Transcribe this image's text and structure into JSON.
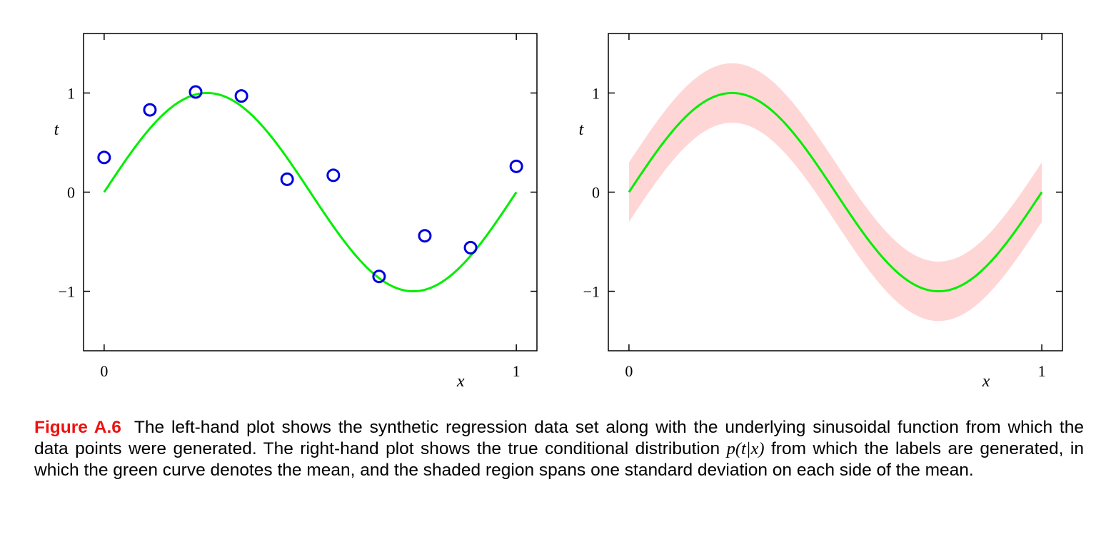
{
  "colors": {
    "curve": "#00ee00",
    "points": "#0000dd",
    "band": "#ffd6d6",
    "axes": "#000000",
    "figure_label": "#ee1111"
  },
  "chart_data": [
    {
      "type": "scatter",
      "name": "left-plot",
      "title": "",
      "xlabel": "x",
      "ylabel": "t",
      "xlim": [
        -0.05,
        1.05
      ],
      "ylim": [
        -1.6,
        1.6
      ],
      "xticks": [
        0,
        1
      ],
      "xtick_labels": [
        "0",
        "1"
      ],
      "yticks": [
        1,
        0,
        -1
      ],
      "ytick_labels": [
        "1",
        "0",
        "−1"
      ],
      "grid": false,
      "series": [
        {
          "name": "sin(2πx)",
          "kind": "line",
          "function": "sin(2*pi*x)",
          "x_range": [
            0,
            1
          ]
        },
        {
          "name": "data points",
          "kind": "scatter",
          "marker": "circle-open",
          "x": [
            0.0,
            0.111,
            0.222,
            0.333,
            0.444,
            0.556,
            0.667,
            0.778,
            0.889,
            1.0
          ],
          "y": [
            0.35,
            0.83,
            1.01,
            0.97,
            0.13,
            0.17,
            -0.85,
            -0.44,
            -0.56,
            0.26
          ]
        }
      ]
    },
    {
      "type": "area",
      "name": "right-plot",
      "title": "",
      "xlabel": "x",
      "ylabel": "t",
      "xlim": [
        -0.05,
        1.05
      ],
      "ylim": [
        -1.6,
        1.6
      ],
      "xticks": [
        0,
        1
      ],
      "xtick_labels": [
        "0",
        "1"
      ],
      "yticks": [
        1,
        0,
        -1
      ],
      "ytick_labels": [
        "1",
        "0",
        "−1"
      ],
      "grid": false,
      "series": [
        {
          "name": "mean sin(2πx)",
          "kind": "line",
          "function": "sin(2*pi*x)",
          "x_range": [
            0,
            1
          ]
        },
        {
          "name": "±1 standard deviation",
          "kind": "band",
          "function": "sin(2*pi*x)",
          "std": 0.3,
          "x_range": [
            0,
            1
          ]
        }
      ]
    }
  ],
  "caption": {
    "label": "Figure A.6",
    "text_1": "The left-hand plot shows the synthetic regression data set along with the underlying sinusoidal function from which the data points were generated. The right-hand plot shows the true conditional distribution ",
    "math": "p(t|x)",
    "text_2": " from which the labels are generated, in which the green curve denotes the mean, and the shaded region spans one standard deviation on each side of the mean."
  }
}
